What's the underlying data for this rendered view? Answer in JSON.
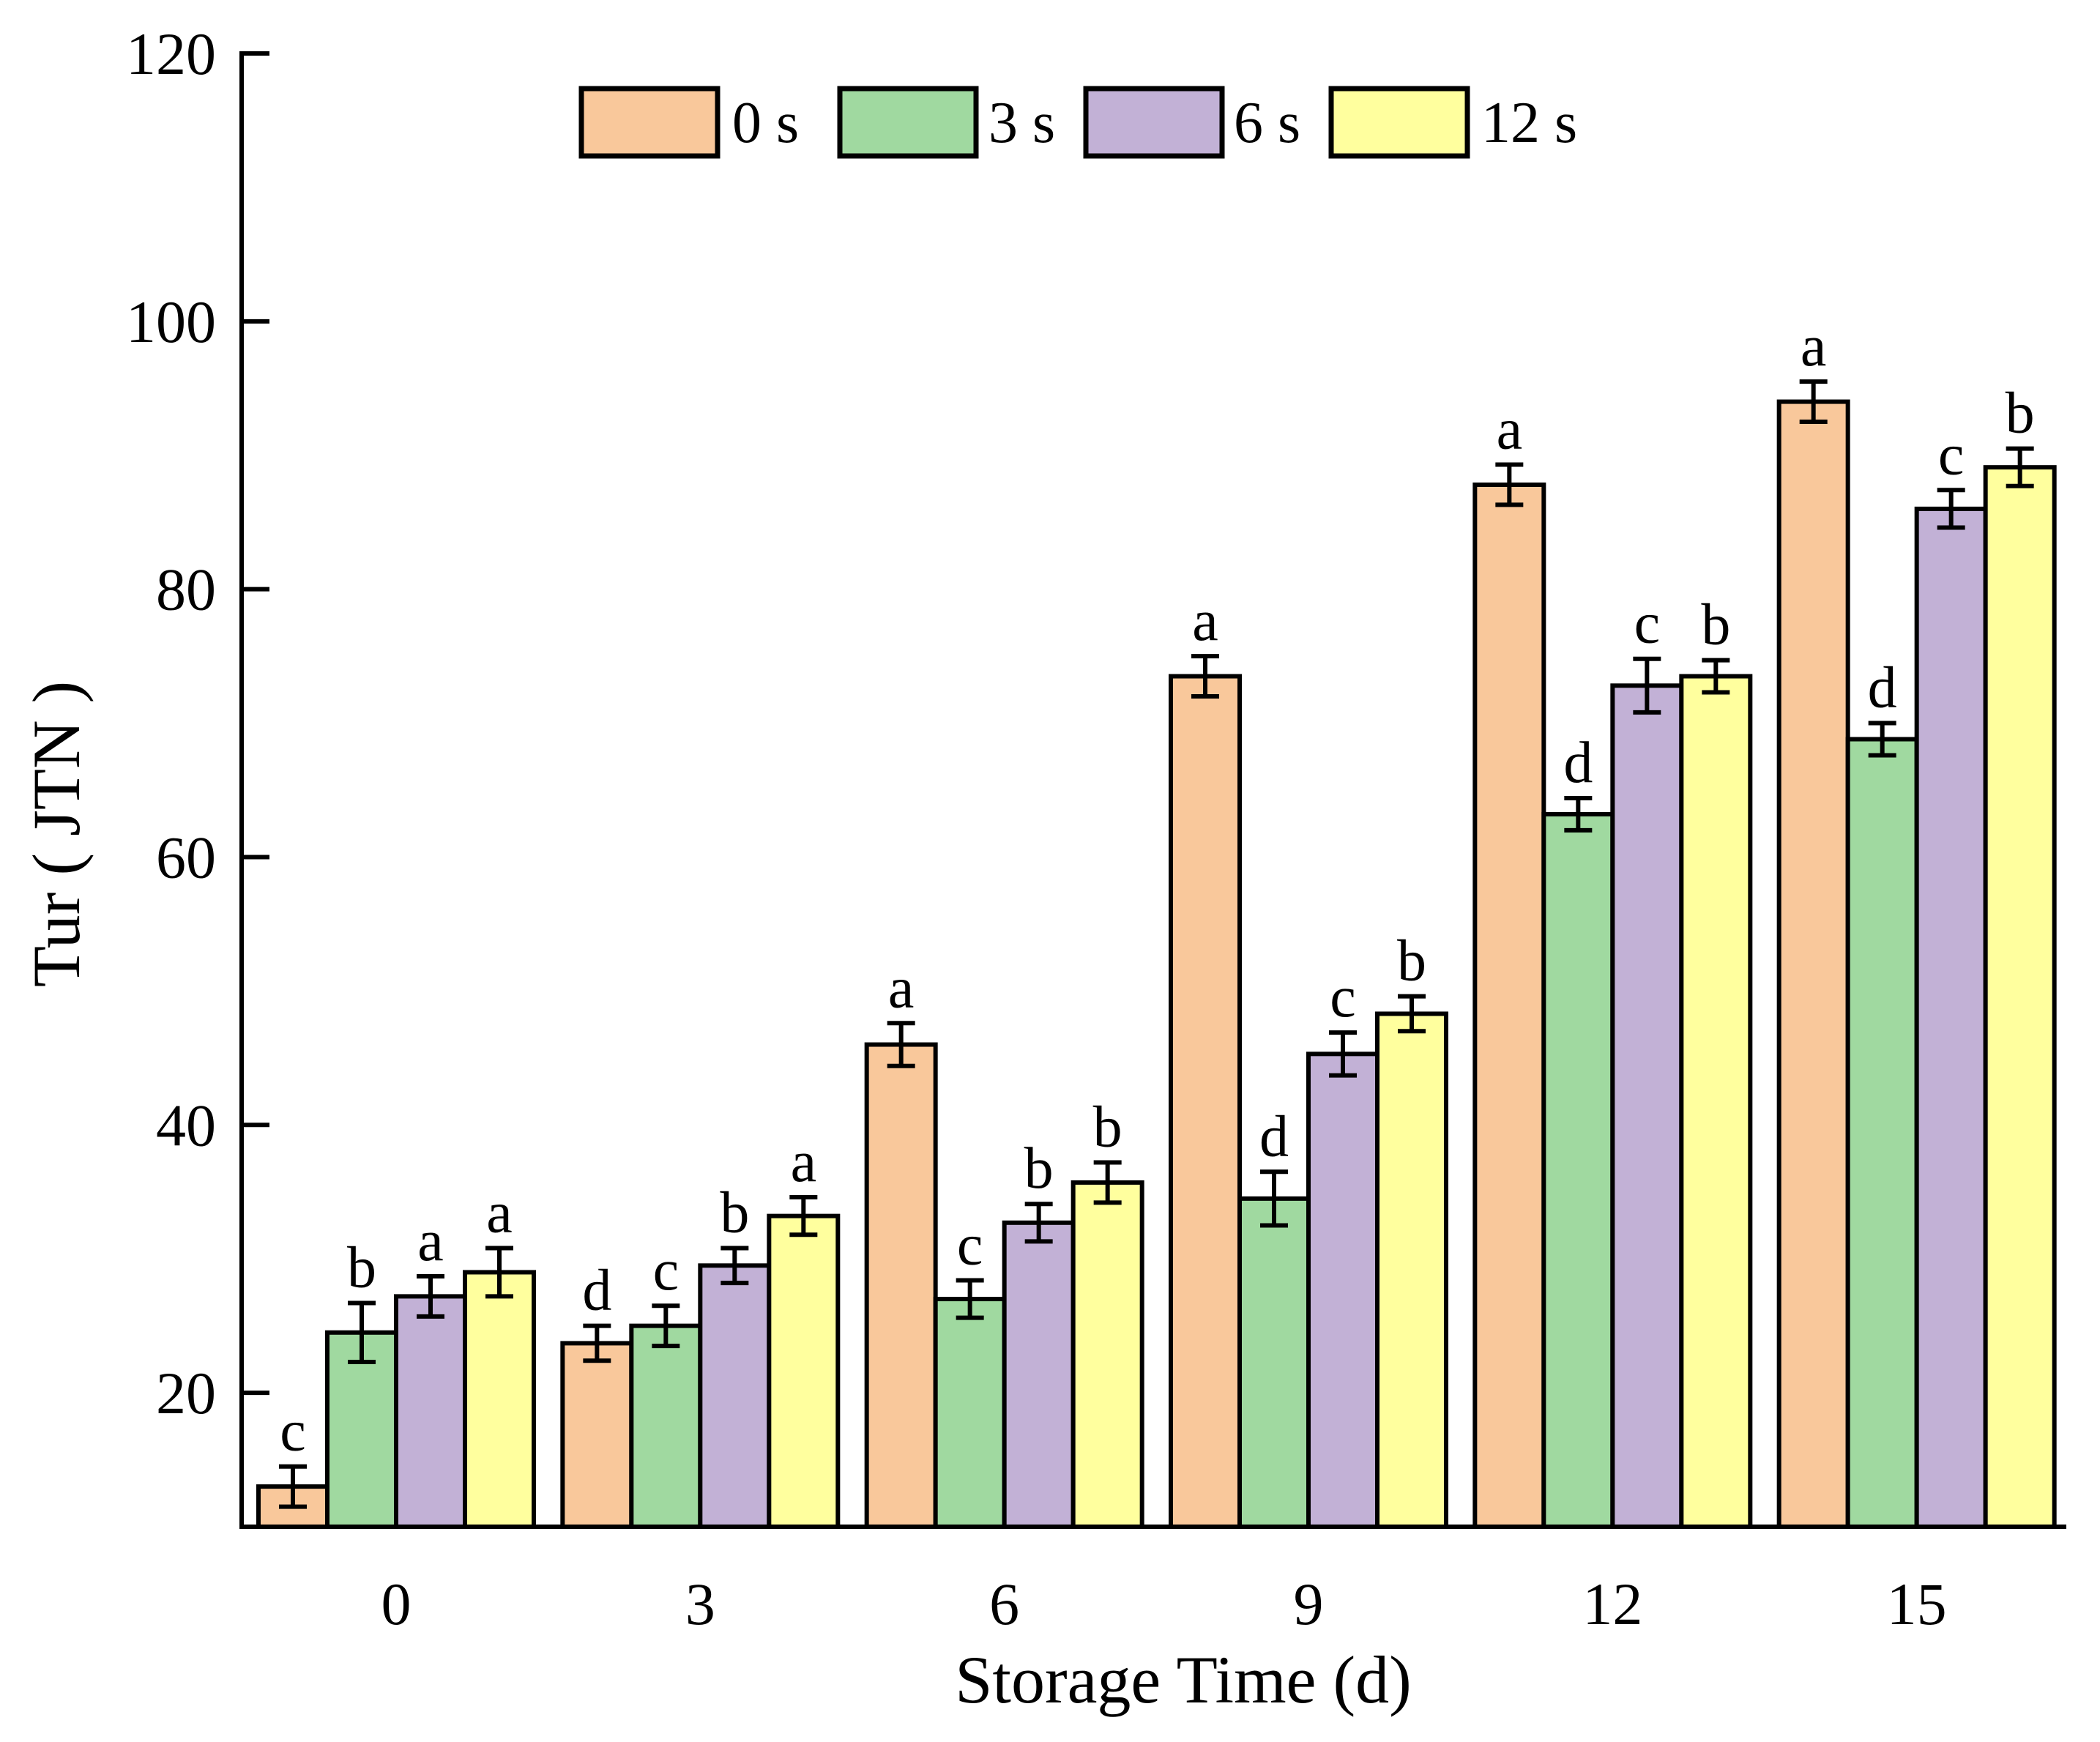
{
  "chart_data": {
    "type": "bar",
    "title": "",
    "xlabel": "Storage Time (d)",
    "ylabel": "Tur ( JTN )",
    "ylim": [
      10,
      120
    ],
    "yticks": [
      "20",
      "40",
      "60",
      "80",
      "100",
      "120"
    ],
    "categories": [
      "0",
      "3",
      "6",
      "9",
      "12",
      "15"
    ],
    "legend_position": "top-center",
    "series": [
      {
        "name": "0 s",
        "color": "#F9C89B",
        "values": [
          13,
          23.7,
          46,
          73.5,
          87.8,
          94
        ],
        "errors": [
          1.5,
          1.3,
          1.6,
          1.5,
          1.5,
          1.5
        ],
        "letters": [
          "c",
          "d",
          "a",
          "a",
          "a",
          "a"
        ]
      },
      {
        "name": "3 s",
        "color": "#A0D9A0",
        "values": [
          24.5,
          25,
          27,
          34.5,
          63.2,
          68.8
        ],
        "errors": [
          2.2,
          1.5,
          1.4,
          2.0,
          1.2,
          1.2
        ],
        "letters": [
          "b",
          "c",
          "c",
          "d",
          "d",
          "d"
        ]
      },
      {
        "name": "6 s",
        "color": "#C2B1D6",
        "values": [
          27.2,
          29.5,
          32.7,
          45.3,
          72.8,
          86
        ],
        "errors": [
          1.5,
          1.3,
          1.4,
          1.6,
          2.0,
          1.4
        ],
        "letters": [
          "a",
          "b",
          "b",
          "c",
          "c",
          "c"
        ]
      },
      {
        "name": "12 s",
        "color": "#FFFF9E",
        "values": [
          29,
          33.2,
          35.7,
          48.3,
          73.5,
          89.1
        ],
        "errors": [
          1.8,
          1.4,
          1.5,
          1.3,
          1.2,
          1.4
        ],
        "letters": [
          "a",
          "a",
          "b",
          "b",
          "b",
          "b"
        ]
      }
    ]
  }
}
